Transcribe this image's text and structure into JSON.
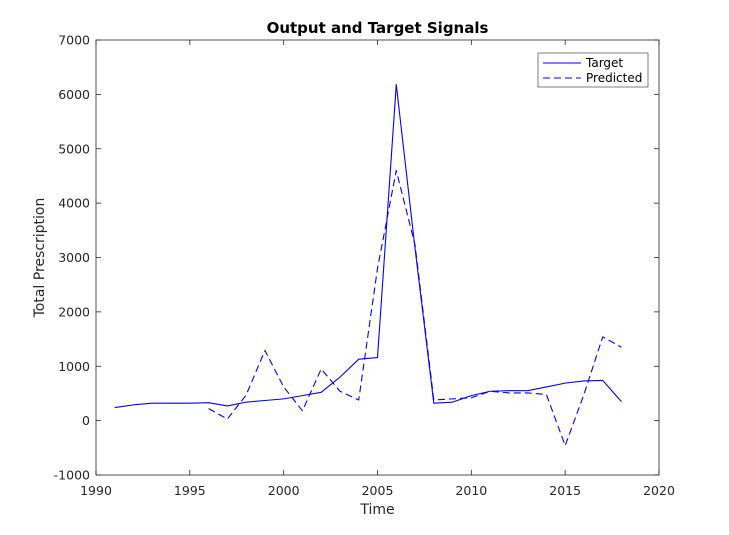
{
  "chart_data": {
    "type": "line",
    "title": "Output and Target Signals",
    "xlabel": "Time",
    "ylabel": "Total Prescription",
    "xlim": [
      1990,
      2020
    ],
    "ylim": [
      -1000,
      7000
    ],
    "xticks": [
      1990,
      1995,
      2000,
      2005,
      2010,
      2015,
      2020
    ],
    "yticks": [
      -1000,
      0,
      1000,
      2000,
      3000,
      4000,
      5000,
      6000,
      7000
    ],
    "xtick_labels": [
      "1990",
      "1995",
      "2000",
      "2005",
      "2010",
      "2015",
      "2020"
    ],
    "ytick_labels": [
      "-1000",
      "0",
      "1000",
      "2000",
      "3000",
      "4000",
      "5000",
      "6000",
      "7000"
    ],
    "grid": false,
    "legend_position": "top-right",
    "series": [
      {
        "name": "Target",
        "style": "solid",
        "color": "#0000ff",
        "x": [
          1991,
          1992,
          1993,
          1994,
          1995,
          1996,
          1997,
          1998,
          1999,
          2000,
          2001,
          2002,
          2003,
          2004,
          2005,
          2006,
          2007,
          2008,
          2009,
          2010,
          2011,
          2012,
          2013,
          2014,
          2015,
          2016,
          2017,
          2018
        ],
        "y": [
          240,
          290,
          320,
          320,
          320,
          330,
          270,
          340,
          370,
          400,
          460,
          520,
          800,
          1130,
          1160,
          6180,
          3170,
          320,
          340,
          460,
          540,
          550,
          550,
          620,
          690,
          730,
          740,
          350
        ]
      },
      {
        "name": "Predicted",
        "style": "dashed",
        "color": "#0000ff",
        "x": [
          1996,
          1997,
          1998,
          1999,
          2000,
          2001,
          2002,
          2003,
          2004,
          2005,
          2006,
          2007,
          2008,
          2009,
          2010,
          2011,
          2012,
          2013,
          2014,
          2015,
          2016,
          2017,
          2018
        ],
        "y": [
          220,
          30,
          470,
          1290,
          620,
          180,
          950,
          540,
          380,
          2800,
          4600,
          3230,
          380,
          400,
          420,
          540,
          510,
          510,
          480,
          -460,
          480,
          1540,
          1350
        ]
      }
    ]
  }
}
